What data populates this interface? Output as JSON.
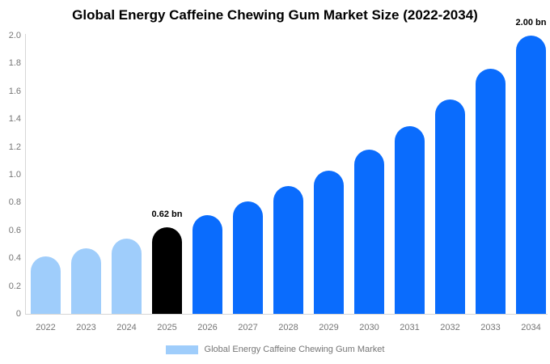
{
  "title": "Global Energy Caffeine Chewing Gum Market Size (2022-2034)",
  "chart_data": {
    "type": "bar",
    "categories": [
      "2022",
      "2023",
      "2024",
      "2025",
      "2026",
      "2027",
      "2028",
      "2029",
      "2030",
      "2031",
      "2032",
      "2033",
      "2034"
    ],
    "values": [
      0.41,
      0.47,
      0.54,
      0.62,
      0.71,
      0.81,
      0.92,
      1.03,
      1.18,
      1.35,
      1.54,
      1.76,
      2.0
    ],
    "bar_colors": [
      "#9fcdfb",
      "#9fcdfb",
      "#9fcdfb",
      "#000000",
      "#0a6cfd",
      "#0a6cfd",
      "#0a6cfd",
      "#0a6cfd",
      "#0a6cfd",
      "#0a6cfd",
      "#0a6cfd",
      "#0a6cfd",
      "#0a6cfd"
    ],
    "title": "Global Energy Caffeine Chewing Gum Market Size (2022-2034)",
    "xlabel": "",
    "ylabel": "",
    "ylim": [
      0,
      2.0
    ],
    "ytick_labels": [
      "0",
      "0.2",
      "0.4",
      "0.6",
      "0.8",
      "1.0",
      "1.2",
      "1.4",
      "1.6",
      "1.8",
      "2.0"
    ],
    "grid": false,
    "legend_position": "bottom",
    "annotations": [
      {
        "category": "2025",
        "text": "0.62 bn"
      },
      {
        "category": "2034",
        "text": "2.00 bn"
      }
    ],
    "legend": {
      "label": "Global Energy Caffeine Chewing Gum Market",
      "swatch_color": "#9fcdfb"
    }
  },
  "colors": {
    "past_bar": "#9fcdfb",
    "highlight_bar": "#000000",
    "forecast_bar": "#0a6cfd",
    "axis_text": "#757575",
    "axis_line": "#d6d6d6",
    "title_text": "#000000",
    "background": "#ffffff"
  }
}
